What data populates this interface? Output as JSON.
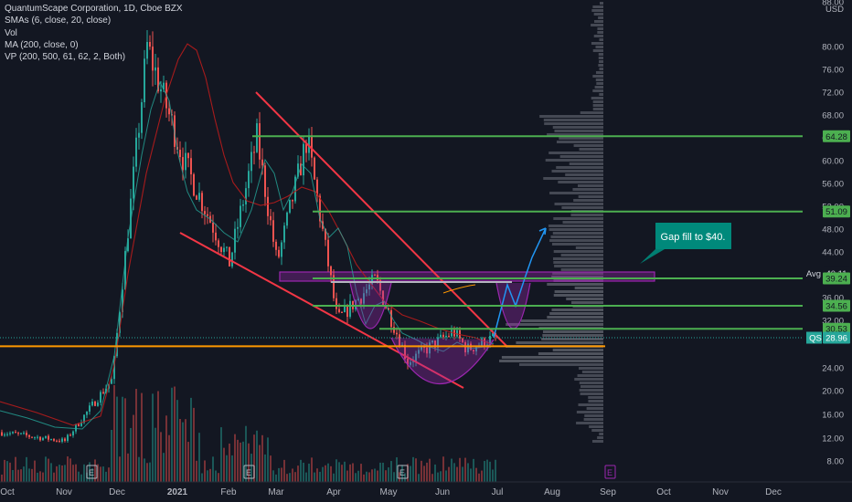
{
  "legend": {
    "title": "QuantumScape Corporation, 1D, Cboe BZX",
    "sma": "SMAs (6, close, 20, close)",
    "vol": "Vol",
    "ma": "MA (200, close, 0)",
    "vp": "VP (200, 500, 61, 62, 2, Both)"
  },
  "chart_data": {
    "type": "candlestick",
    "currency": "USD",
    "symbol": "QS",
    "x_ticks": [
      "Oct",
      "Nov",
      "Dec",
      "2021",
      "Feb",
      "Mar",
      "Apr",
      "May",
      "Jun",
      "Jul",
      "Aug",
      "Sep",
      "Oct",
      "Nov",
      "Dec"
    ],
    "y_ticks": [
      88.0,
      80.0,
      76.0,
      72.0,
      68.0,
      64.0,
      60.0,
      56.0,
      52.0,
      48.0,
      44.0,
      36.0,
      32.0,
      24.0,
      20.0,
      16.0,
      12.0,
      8.0
    ],
    "price_labels": [
      {
        "label": "",
        "value": "64.28",
        "kind": "level"
      },
      {
        "label": "",
        "value": "51.09",
        "kind": "level"
      },
      {
        "label": "Avg",
        "value": "40.11",
        "kind": "avg"
      },
      {
        "label": "",
        "value": "39.24",
        "kind": "level"
      },
      {
        "label": "",
        "value": "34.56",
        "kind": "level"
      },
      {
        "label": "",
        "value": "30.53",
        "kind": "level"
      },
      {
        "label": "QS",
        "value": "28.96",
        "kind": "last"
      }
    ],
    "horizontal_levels": [
      {
        "value": 64.28,
        "color": "#4caf50",
        "from": "Feb"
      },
      {
        "value": 51.09,
        "color": "#4caf50",
        "from": "Mar"
      },
      {
        "value": 39.24,
        "color": "#4caf50",
        "from": "Mar"
      },
      {
        "value": 34.56,
        "color": "#4caf50",
        "from": "Mar"
      },
      {
        "value": 30.53,
        "color": "#4caf50",
        "from": "Apr"
      },
      {
        "value": 27.5,
        "color": "#ff9800",
        "from": "Oct"
      }
    ],
    "annotation": {
      "text": "Gap fill to $40."
    },
    "event_markers": [
      "E",
      "E",
      "E",
      "E",
      "E"
    ],
    "colors": {
      "up": "#26a69a",
      "down": "#ef5350",
      "level": "#4caf50",
      "ma200": "#b71c1c",
      "sma": "#2962ff",
      "trend": "#f23645",
      "zone": "#9c27b0",
      "profile": "#787b86"
    },
    "price_path": [
      {
        "x": "Oct",
        "y": 13
      },
      {
        "x": "Nov",
        "y": 11.5
      },
      {
        "x": "Dec",
        "y": 22
      },
      {
        "x": "Dec",
        "y": 80
      },
      {
        "x": "2021",
        "y": 60
      },
      {
        "x": "Feb",
        "y": 42
      },
      {
        "x": "Feb",
        "y": 64
      },
      {
        "x": "Mar",
        "y": 42
      },
      {
        "x": "Mar",
        "y": 64
      },
      {
        "x": "Apr",
        "y": 32
      },
      {
        "x": "Apr",
        "y": 39
      },
      {
        "x": "May",
        "y": 25
      },
      {
        "x": "Jun",
        "y": 30
      },
      {
        "x": "Jun",
        "y": 27
      },
      {
        "x": "Jul",
        "y": 29
      }
    ]
  }
}
